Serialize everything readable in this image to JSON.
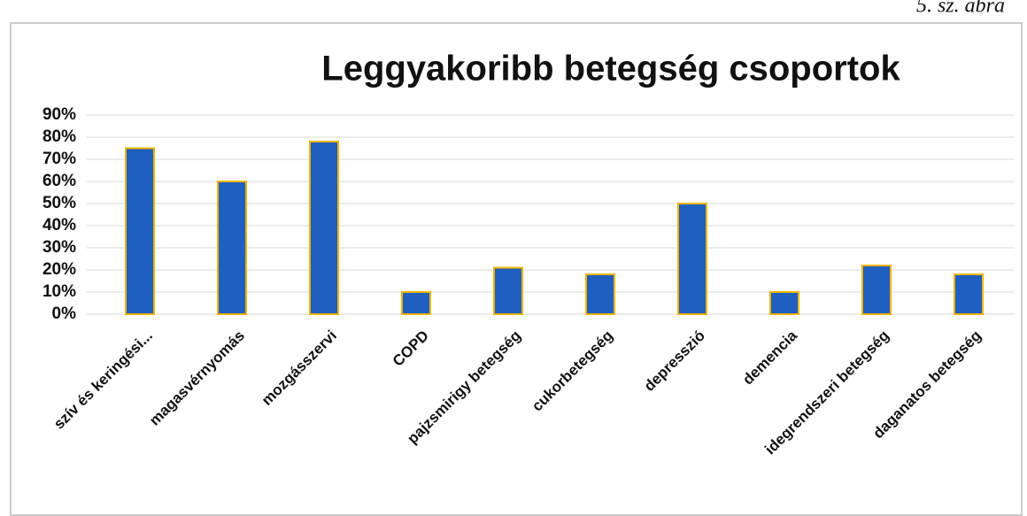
{
  "chart_data": {
    "type": "bar",
    "caption": "5. sz. ábra",
    "title": "Leggyakoribb betegség csoportok",
    "categories": [
      "szív és keringési...",
      "magasvérnyomás",
      "mozgásszervi",
      "COPD",
      "pajzsmirigy betegség",
      "cukorbetegség",
      "depresszió",
      "demencia",
      "idegrendszeri betegség",
      "daganatos betegség"
    ],
    "values": [
      75,
      60,
      78,
      10,
      21,
      18,
      50,
      10,
      22,
      18
    ],
    "color": "#1f5fbf",
    "edge_color": "#f0b400",
    "ylim": [
      0,
      90
    ],
    "yticks": [
      {
        "value": 0,
        "label": "0%"
      },
      {
        "value": 10,
        "label": "10%"
      },
      {
        "value": 20,
        "label": "20%"
      },
      {
        "value": 30,
        "label": "30%"
      },
      {
        "value": 40,
        "label": "40%"
      },
      {
        "value": 50,
        "label": "50%"
      },
      {
        "value": 60,
        "label": "60%"
      },
      {
        "value": 70,
        "label": "70%"
      },
      {
        "value": 80,
        "label": "80%"
      },
      {
        "value": 90,
        "label": "90%"
      }
    ],
    "grid": true
  }
}
